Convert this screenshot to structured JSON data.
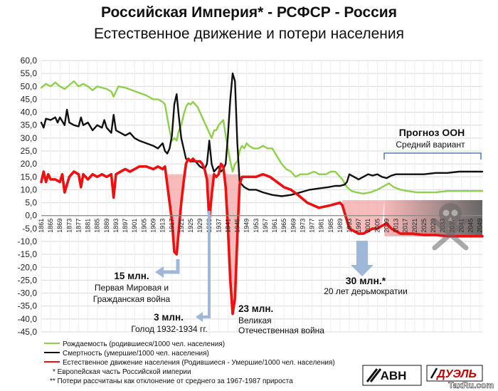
{
  "chart_data": {
    "type": "line",
    "title": "Российская Империя* - РСФСР - Россия",
    "subtitle": "Естественное движение и потери населения",
    "ylim": [
      -45,
      60
    ],
    "xlim": [
      1861,
      2050
    ],
    "ytick_step": 5,
    "grid": true,
    "y_ticks": [
      "60,0",
      "55,0",
      "50,0",
      "45,0",
      "40,0",
      "35,0",
      "30,0",
      "25,0",
      "20,0",
      "15,0",
      "10,0",
      "5,0",
      "0,0",
      "-5,0",
      "-10,0",
      "-15,0",
      "-20,0",
      "-25,0",
      "-30,0",
      "-35,0",
      "-40,0",
      "-45,0"
    ],
    "x_ticks": [
      "1861",
      "1865",
      "1869",
      "1873",
      "1877",
      "1881",
      "1885",
      "1889",
      "1893",
      "1897",
      "1901",
      "1905",
      "1909",
      "1913",
      "1917",
      "1921",
      "1925",
      "1929",
      "1933",
      "1937",
      "1941",
      "1945",
      "1949",
      "1953",
      "1957",
      "1961",
      "1965",
      "1969",
      "1973",
      "1977",
      "1981",
      "1985",
      "1989",
      "1993",
      "1997",
      "2001",
      "2005",
      "2009",
      "2013",
      "2017",
      "2021",
      "2025",
      "2029",
      "2033",
      "2037",
      "2041",
      "2045",
      "2049"
    ],
    "series": [
      {
        "name": "Рождаемость (родившиеся/1000 чел. населения)",
        "color": "#8fd04a",
        "x": [
          1861,
          1863,
          1865,
          1867,
          1869,
          1871,
          1873,
          1875,
          1877,
          1879,
          1881,
          1883,
          1885,
          1887,
          1889,
          1891,
          1892,
          1894,
          1897,
          1900,
          1903,
          1906,
          1909,
          1911,
          1913,
          1914,
          1915,
          1916,
          1917,
          1918,
          1919,
          1920,
          1921,
          1922,
          1923,
          1924,
          1925,
          1926,
          1927,
          1928,
          1929,
          1930,
          1931,
          1932,
          1933,
          1934,
          1935,
          1936,
          1937,
          1938,
          1939,
          1940,
          1941,
          1942,
          1943,
          1944,
          1945,
          1946,
          1947,
          1948,
          1949,
          1950,
          1952,
          1954,
          1956,
          1958,
          1960,
          1962,
          1964,
          1966,
          1968,
          1970,
          1972,
          1975,
          1978,
          1980,
          1983,
          1985,
          1987,
          1988,
          1990,
          1992,
          1994,
          1996,
          1999,
          2002,
          2005,
          2008,
          2010,
          2012,
          2015,
          2018,
          2022,
          2026,
          2030,
          2035,
          2040,
          2045,
          2050
        ],
        "y": [
          49.5,
          51,
          50,
          51.5,
          50,
          49,
          50.5,
          52,
          50,
          51,
          50,
          48.5,
          50,
          49.5,
          49,
          48,
          46,
          50,
          49.5,
          48.5,
          47.5,
          46.5,
          45,
          45,
          44,
          43,
          38,
          33,
          29,
          30,
          29,
          33,
          35,
          39,
          42,
          43.5,
          43,
          44,
          43,
          42,
          40,
          38,
          36,
          34,
          32,
          30,
          33,
          33,
          35,
          36,
          37,
          31,
          26,
          21,
          17,
          20,
          21,
          25,
          27,
          26,
          28,
          27,
          26,
          26,
          27,
          26,
          26,
          23,
          20,
          18,
          17,
          15,
          16,
          16,
          17,
          16,
          16,
          17,
          17,
          16,
          14,
          11,
          9.5,
          9,
          8.5,
          9,
          10,
          11.5,
          12.5,
          11,
          10,
          9.5,
          9,
          9,
          9,
          9.5,
          9.5,
          9.5,
          9.5
        ]
      },
      {
        "name": "Смертность (умершие/1000 чел. населения)",
        "color": "#111111",
        "x": [
          1861,
          1862,
          1863,
          1865,
          1867,
          1868,
          1869,
          1871,
          1872,
          1873,
          1875,
          1877,
          1878,
          1879,
          1881,
          1883,
          1885,
          1887,
          1888,
          1889,
          1891,
          1892,
          1893,
          1895,
          1897,
          1899,
          1901,
          1903,
          1906,
          1909,
          1911,
          1913,
          1914,
          1915,
          1916,
          1917,
          1918,
          1919,
          1920,
          1921,
          1922,
          1923,
          1925,
          1927,
          1929,
          1931,
          1932,
          1933,
          1934,
          1935,
          1936,
          1937,
          1938,
          1939,
          1940,
          1941,
          1942,
          1943,
          1944,
          1945,
          1946,
          1947,
          1948,
          1950,
          1953,
          1956,
          1960,
          1964,
          1968,
          1972,
          1976,
          1980,
          1984,
          1987,
          1989,
          1991,
          1992,
          1993,
          1995,
          1997,
          1999,
          2001,
          2003,
          2005,
          2007,
          2009,
          2011,
          2013,
          2016,
          2020,
          2025,
          2030,
          2035,
          2040,
          2045,
          2050
        ],
        "y": [
          36,
          34,
          37.5,
          37,
          38,
          36,
          38,
          35,
          41,
          36,
          35,
          34.5,
          38,
          35,
          36,
          33,
          35,
          34,
          37,
          34,
          32,
          39,
          33,
          32,
          31,
          32,
          30,
          29,
          28,
          27,
          26,
          28,
          25,
          24,
          26,
          31,
          43,
          47,
          38,
          30,
          26,
          22,
          21,
          21,
          19,
          18,
          20,
          29,
          20,
          17,
          18,
          19,
          17,
          18,
          20,
          31,
          45,
          55,
          52,
          28,
          13,
          12,
          11,
          10,
          10,
          9,
          8,
          7.5,
          8,
          9,
          10,
          10.5,
          11,
          11.5,
          11.5,
          12,
          13,
          16,
          15,
          14,
          15,
          16,
          15.5,
          16,
          15,
          14.5,
          15.5,
          16,
          16,
          16,
          16,
          16.5,
          16.5,
          17,
          17,
          17
        ]
      },
      {
        "name": "Естественное движение населения (Родившиеся - Умершие/1000 чел. населения)",
        "color": "#ee1010",
        "x": [
          1861,
          1862,
          1863,
          1864,
          1865,
          1867,
          1869,
          1870,
          1871,
          1873,
          1875,
          1877,
          1878,
          1879,
          1881,
          1883,
          1885,
          1887,
          1889,
          1891,
          1892,
          1893,
          1895,
          1897,
          1899,
          1901,
          1903,
          1906,
          1909,
          1911,
          1913,
          1914,
          1915,
          1916,
          1917,
          1918,
          1919,
          1920,
          1921,
          1922,
          1923,
          1924,
          1925,
          1926,
          1927,
          1928,
          1929,
          1930,
          1931,
          1932,
          1933,
          1934,
          1935,
          1936,
          1937,
          1938,
          1939,
          1940,
          1941,
          1942,
          1943,
          1944,
          1945,
          1946,
          1947,
          1948,
          1950,
          1953,
          1956,
          1959,
          1962,
          1965,
          1968,
          1971,
          1975,
          1980,
          1985,
          1987,
          1989,
          1990,
          1991,
          1992,
          1993,
          1995,
          1997,
          1999,
          2001,
          2003,
          2005,
          2007,
          2009,
          2011,
          2013,
          2015,
          2020,
          2025,
          2030,
          2035,
          2040,
          2045,
          2050
        ],
        "y": [
          13,
          17,
          13,
          16,
          14,
          14,
          13,
          16,
          9,
          15,
          17,
          16,
          11,
          16,
          14,
          16,
          15,
          16,
          15,
          16,
          7,
          16,
          17,
          18,
          17,
          18,
          19,
          19,
          18,
          19,
          18,
          19,
          12,
          5,
          -2,
          -14,
          -15,
          -5,
          5,
          13,
          20,
          22,
          21,
          22,
          21,
          21,
          21,
          20,
          18,
          14,
          -2,
          8,
          16,
          15,
          16,
          20,
          19,
          11,
          -5,
          -25,
          -38,
          -32,
          -8,
          12,
          15,
          15,
          15,
          15,
          16,
          15,
          13,
          11,
          10,
          8,
          5,
          3,
          4,
          4.5,
          5,
          4,
          1,
          -2,
          -5,
          -6,
          -7,
          -7,
          -6,
          -5,
          -5,
          -4,
          -3,
          -5,
          -6,
          -7,
          -7,
          -7.5,
          -7.5,
          -8,
          -8,
          -8,
          -8
        ]
      }
    ],
    "annotations": [
      {
        "big": "15 млн.",
        "line1": "Первая Мировая и",
        "line2": "Гражданская война"
      },
      {
        "big": "3 млн.",
        "line1": "Голод 1932-1934 гг.",
        "line2": ""
      },
      {
        "big": "23 млн.",
        "line1": "Великая",
        "line2": "Отечественная война"
      },
      {
        "big": "30 млн.*",
        "line1": "20 лет дерьмократии",
        "line2": ""
      }
    ],
    "forecast_label": "Прогноз ООН",
    "forecast_sub": "Средний вариант",
    "footnotes": [
      "*  Европейская часть Российской империи",
      "**  Потери рассчитаны как отклонение от среднего за 1967-1987 прироста"
    ],
    "colors": {
      "birth": "#8fd04a",
      "death": "#111111",
      "natural": "#ee1010",
      "loss_fill": "#f4a7a7",
      "arrow": "#9fb8d8"
    }
  },
  "logos": {
    "avn": "АВН",
    "avn_sub": "армия воли народа",
    "duel": "ДУЭЛЬ",
    "site": "TaxRu.com"
  }
}
